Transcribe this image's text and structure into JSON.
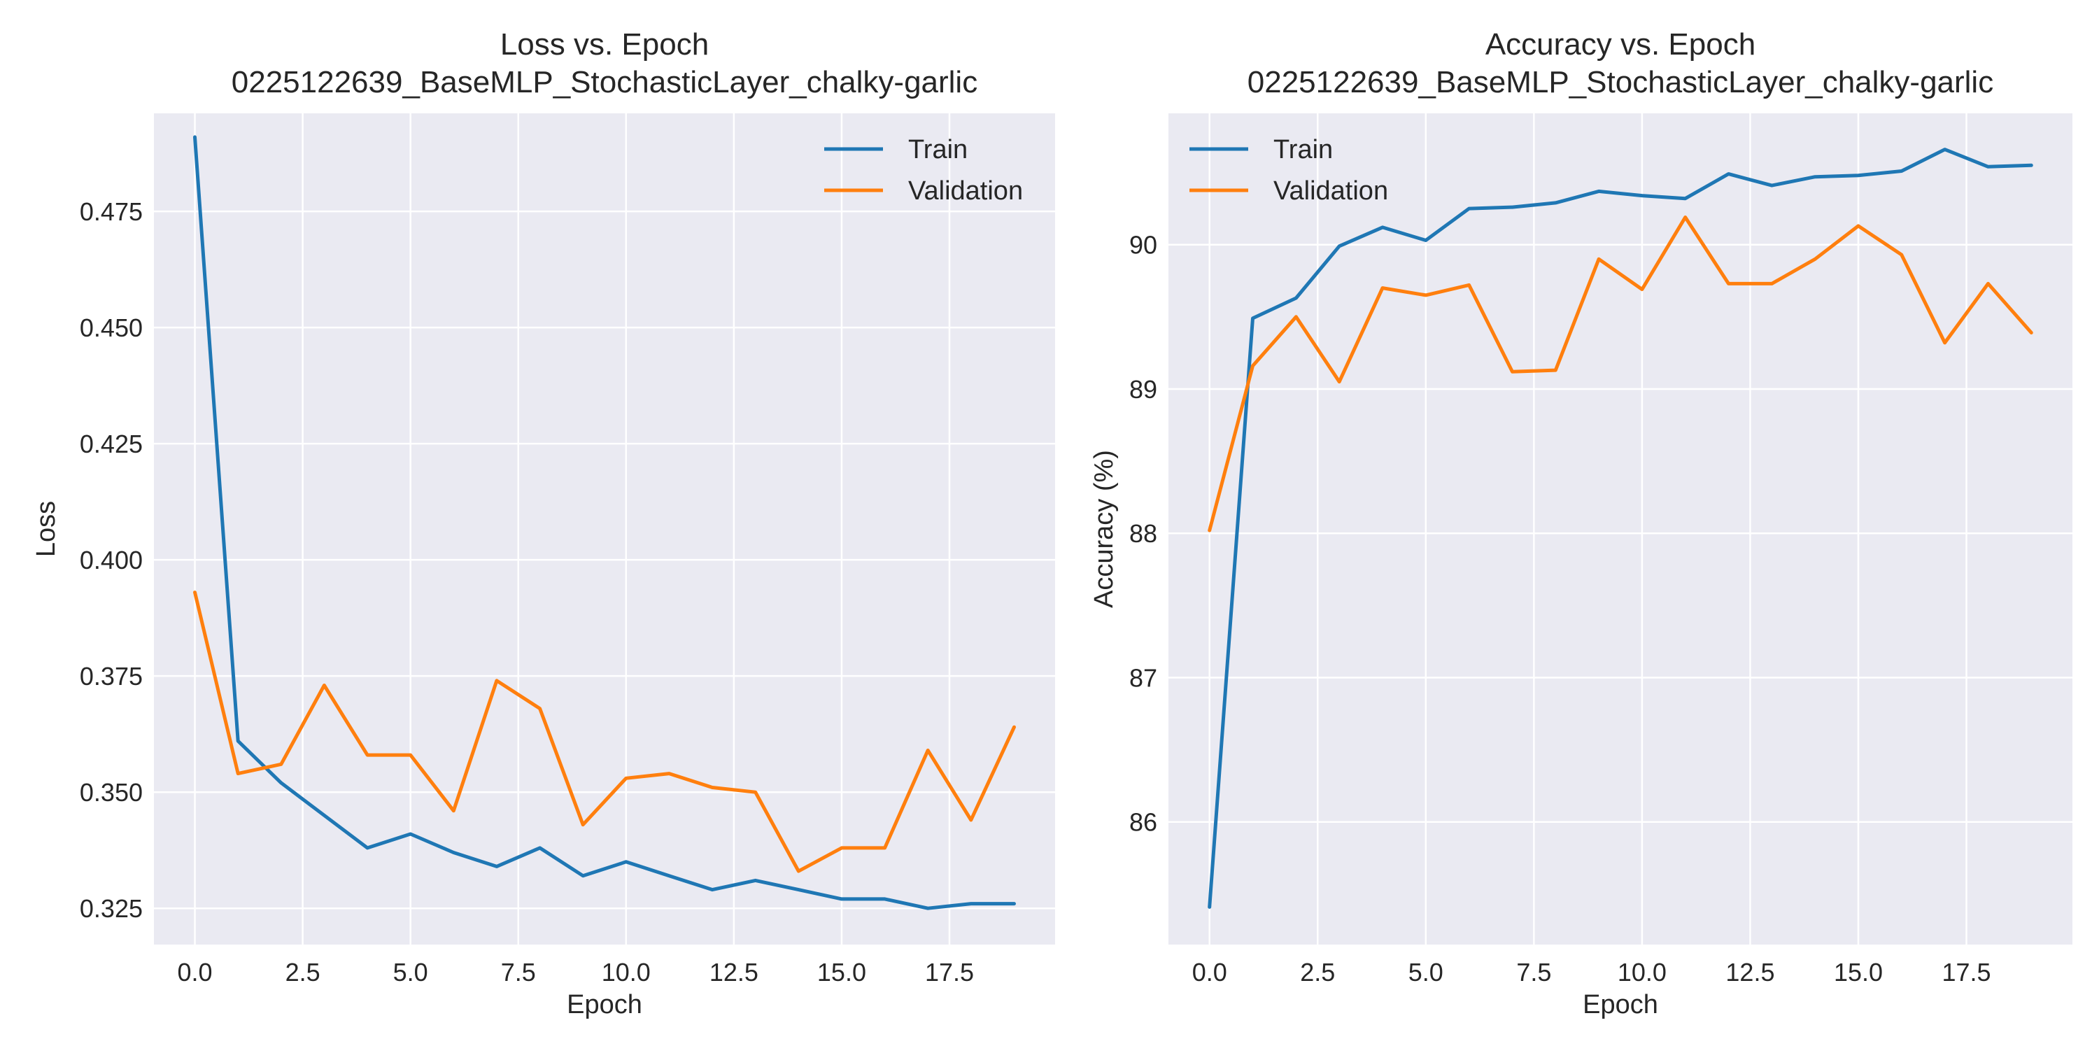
{
  "colors": {
    "train": "#1f77b4",
    "validation": "#ff7f0e",
    "plot_bg": "#eaeaf2",
    "grid": "#ffffff"
  },
  "chart_data": [
    {
      "type": "line",
      "title": "Loss vs. Epoch",
      "subtitle": "0225122639_BaseMLP_StochasticLayer_chalky-garlic",
      "xlabel": "Epoch",
      "ylabel": "Loss",
      "x": [
        0,
        1,
        2,
        3,
        4,
        5,
        6,
        7,
        8,
        9,
        10,
        11,
        12,
        13,
        14,
        15,
        16,
        17,
        18,
        19
      ],
      "xlim": [
        -0.95,
        19.95
      ],
      "ylim": [
        0.3172,
        0.4961
      ],
      "xticks": [
        0.0,
        2.5,
        5.0,
        7.5,
        10.0,
        12.5,
        15.0,
        17.5
      ],
      "xtick_labels": [
        "0.0",
        "2.5",
        "5.0",
        "7.5",
        "10.0",
        "12.5",
        "15.0",
        "17.5"
      ],
      "yticks": [
        0.325,
        0.35,
        0.375,
        0.4,
        0.425,
        0.45,
        0.475
      ],
      "ytick_labels": [
        "0.325",
        "0.350",
        "0.375",
        "0.400",
        "0.425",
        "0.450",
        "0.475"
      ],
      "grid": true,
      "legend_position": "top-right",
      "series": [
        {
          "name": "Train",
          "color_key": "train",
          "values": [
            0.491,
            0.361,
            0.352,
            0.345,
            0.338,
            0.341,
            0.337,
            0.334,
            0.338,
            0.332,
            0.335,
            0.332,
            0.329,
            0.331,
            0.329,
            0.327,
            0.327,
            0.325,
            0.326,
            0.326
          ]
        },
        {
          "name": "Validation",
          "color_key": "validation",
          "values": [
            0.393,
            0.354,
            0.356,
            0.373,
            0.358,
            0.358,
            0.346,
            0.374,
            0.368,
            0.343,
            0.353,
            0.354,
            0.351,
            0.35,
            0.333,
            0.338,
            0.338,
            0.359,
            0.344,
            0.364
          ]
        }
      ]
    },
    {
      "type": "line",
      "title": "Accuracy vs. Epoch",
      "subtitle": "0225122639_BaseMLP_StochasticLayer_chalky-garlic",
      "xlabel": "Epoch",
      "ylabel": "Accuracy (%)",
      "x": [
        0,
        1,
        2,
        3,
        4,
        5,
        6,
        7,
        8,
        9,
        10,
        11,
        12,
        13,
        14,
        15,
        16,
        17,
        18,
        19
      ],
      "xlim": [
        -0.95,
        19.95
      ],
      "ylim": [
        85.15,
        90.91
      ],
      "xticks": [
        0.0,
        2.5,
        5.0,
        7.5,
        10.0,
        12.5,
        15.0,
        17.5
      ],
      "xtick_labels": [
        "0.0",
        "2.5",
        "5.0",
        "7.5",
        "10.0",
        "12.5",
        "15.0",
        "17.5"
      ],
      "yticks": [
        86,
        87,
        88,
        89,
        90
      ],
      "ytick_labels": [
        "86",
        "87",
        "88",
        "89",
        "90"
      ],
      "grid": true,
      "legend_position": "top-left",
      "series": [
        {
          "name": "Train",
          "color_key": "train",
          "values": [
            85.41,
            89.49,
            89.63,
            89.99,
            90.12,
            90.03,
            90.25,
            90.26,
            90.29,
            90.37,
            90.34,
            90.32,
            90.49,
            90.41,
            90.47,
            90.48,
            90.51,
            90.66,
            90.54,
            90.55
          ]
        },
        {
          "name": "Validation",
          "color_key": "validation",
          "values": [
            88.02,
            89.16,
            89.5,
            89.05,
            89.7,
            89.65,
            89.72,
            89.12,
            89.13,
            89.9,
            89.69,
            90.19,
            89.73,
            89.73,
            89.9,
            90.13,
            89.93,
            89.32,
            89.73,
            89.39
          ]
        }
      ]
    }
  ]
}
